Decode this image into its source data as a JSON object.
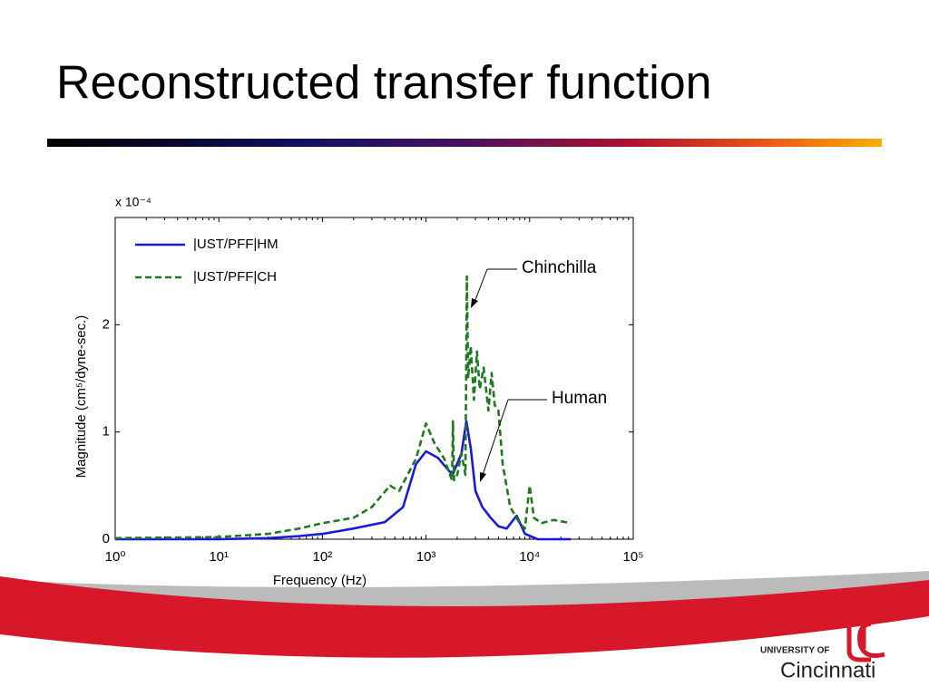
{
  "slide": {
    "title": "Reconstructed transfer function",
    "logo_top": "UNIVERSITY OF",
    "logo_name": "Cincinnati"
  },
  "chart_data": {
    "type": "line",
    "xlabel": "Frequency (Hz)",
    "ylabel": "Magnitude (cm⁵/dyne-sec.)",
    "y_multiplier": "x 10⁻⁴",
    "xscale": "log",
    "xlim": [
      1,
      100000
    ],
    "xticks": [
      {
        "value": 1,
        "label": "10⁰"
      },
      {
        "value": 10,
        "label": "10¹"
      },
      {
        "value": 100,
        "label": "10²"
      },
      {
        "value": 1000,
        "label": "10³"
      },
      {
        "value": 10000,
        "label": "10⁴"
      },
      {
        "value": 100000,
        "label": "10⁵"
      }
    ],
    "ylim": [
      0,
      3
    ],
    "yticks": [
      0,
      1,
      2
    ],
    "grid": false,
    "legend": "upper left",
    "annotations": [
      "Chinchilla",
      "Human"
    ],
    "series": [
      {
        "name": "|UST/PFF|HM",
        "color": "#1a1adc",
        "dash": "solid",
        "x": [
          1,
          10,
          30,
          60,
          100,
          200,
          400,
          600,
          800,
          1000,
          1300,
          1800,
          2200,
          2450,
          2700,
          3000,
          3500,
          4200,
          5000,
          6000,
          7500,
          9000,
          12000,
          25000
        ],
        "values": [
          0,
          0,
          0.01,
          0.03,
          0.05,
          0.1,
          0.16,
          0.3,
          0.7,
          0.82,
          0.76,
          0.6,
          0.8,
          1.1,
          0.85,
          0.45,
          0.3,
          0.2,
          0.12,
          0.1,
          0.22,
          0.05,
          0,
          0
        ]
      },
      {
        "name": "|UST/PFF|CH",
        "color": "#1f7a1f",
        "dash": "dashed",
        "x": [
          1,
          10,
          30,
          60,
          100,
          200,
          300,
          450,
          550,
          800,
          1000,
          1200,
          1500,
          1780,
          1820,
          1860,
          2000,
          2200,
          2400,
          2480,
          2550,
          2700,
          2900,
          3100,
          3300,
          3600,
          4000,
          4300,
          4600,
          5000,
          5500,
          6500,
          8000,
          9000,
          10000,
          11000,
          13000,
          17000,
          25000
        ],
        "values": [
          0.01,
          0.02,
          0.05,
          0.1,
          0.15,
          0.2,
          0.3,
          0.5,
          0.45,
          0.75,
          1.08,
          0.9,
          0.75,
          0.55,
          1.1,
          0.55,
          0.6,
          0.8,
          0.6,
          2.45,
          1.5,
          1.8,
          1.3,
          1.75,
          1.4,
          1.6,
          1.2,
          1.55,
          1.25,
          1.2,
          0.7,
          0.3,
          0.15,
          0.1,
          0.5,
          0.2,
          0.15,
          0.18,
          0.15
        ]
      }
    ]
  }
}
